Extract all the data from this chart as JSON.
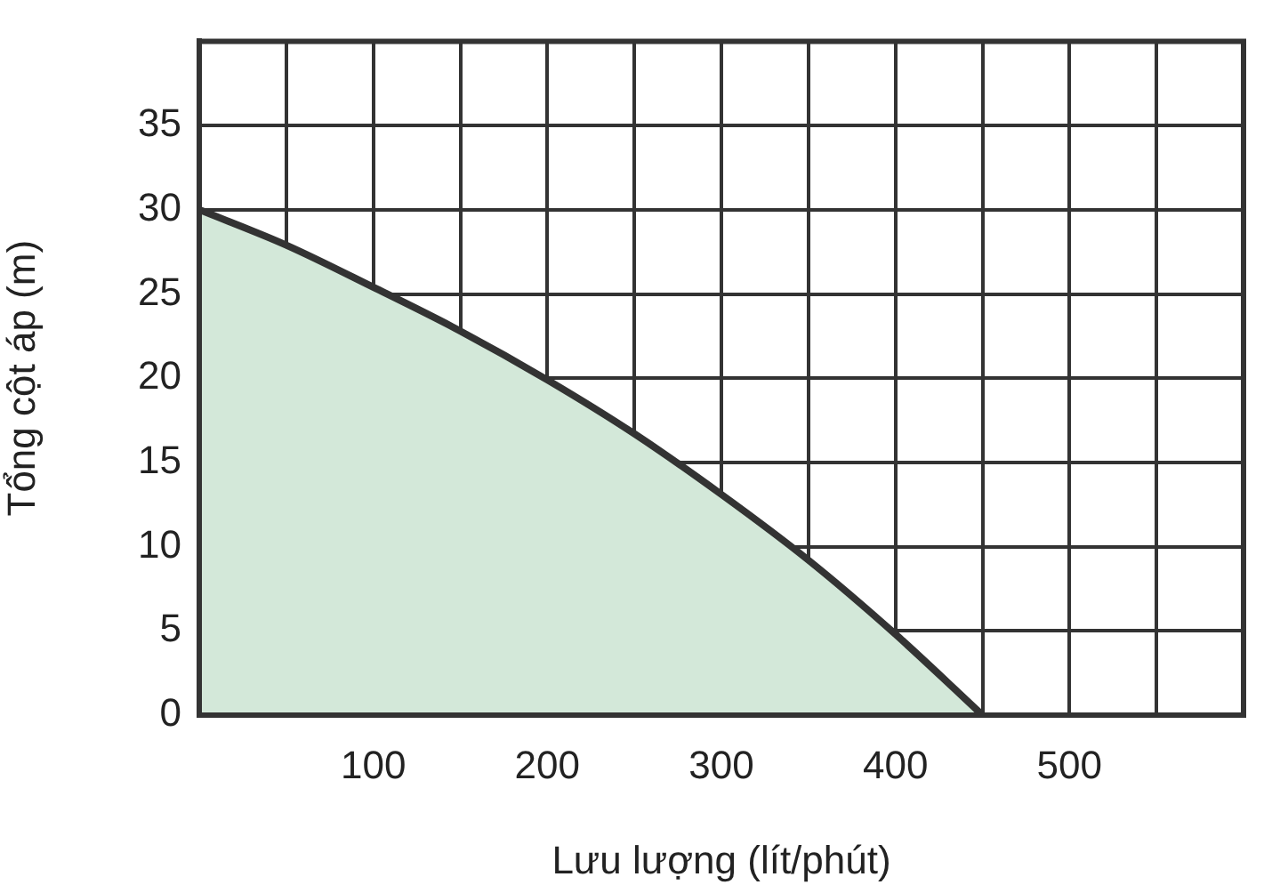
{
  "chart_data": {
    "type": "area",
    "xlabel": "Lưu lượng (lít/phút)",
    "ylabel": "Tổng cột áp (m)",
    "x": [
      0,
      50,
      100,
      150,
      200,
      250,
      300,
      350,
      400,
      450
    ],
    "series": [
      {
        "color": "#333333",
        "values": [
          30,
          27.9,
          25.4,
          22.8,
          19.9,
          16.7,
          13.1,
          9.2,
          4.8,
          0
        ]
      }
    ],
    "xlim": [
      0,
      600
    ],
    "xticks": [
      {
        "value": 0,
        "label": null
      },
      {
        "value": 50,
        "label": null
      },
      100,
      {
        "value": 150,
        "label": null
      },
      200,
      {
        "value": 250,
        "label": null
      },
      300,
      {
        "value": 350,
        "label": null
      },
      400,
      {
        "value": 450,
        "label": null
      },
      500,
      {
        "value": 550,
        "label": null
      },
      {
        "value": 600,
        "label": null
      }
    ],
    "ylim": [
      0,
      40
    ],
    "yticks": [
      0,
      5,
      10,
      15,
      20,
      25,
      30,
      35,
      {
        "value": 40,
        "label": null
      }
    ],
    "grid": true,
    "legend": false
  }
}
